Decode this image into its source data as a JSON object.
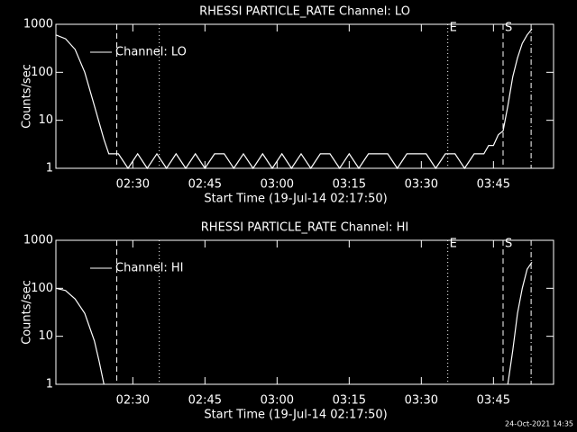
{
  "chart_data": [
    {
      "type": "line",
      "title": "RHESSI PARTICLE_RATE Channel: LO",
      "x_label": "Start Time (19-Jul-14 02:17:50)",
      "y_label": "Counts/sec",
      "log_scale": true,
      "xlim": [
        "02:14:00",
        "03:57:30"
      ],
      "ylim": [
        1,
        1000
      ],
      "xticks": [
        "02:30",
        "02:45",
        "03:00",
        "03:15",
        "03:30",
        "03:45"
      ],
      "yticks": [
        1,
        10,
        100,
        1000
      ],
      "legend": "upper left",
      "markers": [
        {
          "x": "02:26:40",
          "style": "dashed"
        },
        {
          "x": "02:35:30",
          "style": "dotted"
        },
        {
          "x": "03:35:30",
          "style": "dotted",
          "label": "E"
        },
        {
          "x": "03:47:00",
          "style": "dashed",
          "label": "S"
        },
        {
          "x": "03:52:50",
          "style": "dashdot"
        }
      ],
      "series": [
        {
          "name": "Channel: LO",
          "color": "#ffffff",
          "x": [
            "02:14:00",
            "02:16:00",
            "02:18:00",
            "02:20:00",
            "02:22:00",
            "02:24:00",
            "02:25:00",
            "02:27:00",
            "02:29:00",
            "02:31:00",
            "02:33:00",
            "02:35:00",
            "02:37:00",
            "02:39:00",
            "02:41:00",
            "02:43:00",
            "02:45:00",
            "02:47:00",
            "02:49:00",
            "02:51:00",
            "02:53:00",
            "02:55:00",
            "02:57:00",
            "02:59:00",
            "03:01:00",
            "03:03:00",
            "03:05:00",
            "03:07:00",
            "03:09:00",
            "03:11:00",
            "03:13:00",
            "03:15:00",
            "03:17:00",
            "03:19:00",
            "03:21:00",
            "03:23:00",
            "03:25:00",
            "03:27:00",
            "03:29:00",
            "03:31:00",
            "03:33:00",
            "03:35:00",
            "03:37:00",
            "03:39:00",
            "03:41:00",
            "03:43:00",
            "03:44:00",
            "03:45:00",
            "03:46:00",
            "03:47:00",
            "03:48:00",
            "03:49:00",
            "03:50:00",
            "03:51:00",
            "03:52:00",
            "03:53:00"
          ],
          "values": [
            600,
            500,
            300,
            100,
            20,
            4,
            2,
            2,
            1,
            2,
            1,
            2,
            1,
            2,
            1,
            2,
            1,
            2,
            2,
            1,
            2,
            1,
            2,
            1,
            2,
            1,
            2,
            1,
            2,
            2,
            1,
            2,
            1,
            2,
            2,
            2,
            1,
            2,
            2,
            2,
            1,
            2,
            2,
            1,
            2,
            2,
            3,
            3,
            5,
            6,
            20,
            80,
            200,
            400,
            600,
            800
          ]
        }
      ]
    },
    {
      "type": "line",
      "title": "RHESSI PARTICLE_RATE Channel: HI",
      "x_label": "Start Time (19-Jul-14 02:17:50)",
      "y_label": "Counts/sec",
      "log_scale": true,
      "xlim": [
        "02:14:00",
        "03:57:30"
      ],
      "ylim": [
        1,
        1000
      ],
      "xticks": [
        "02:30",
        "02:45",
        "03:00",
        "03:15",
        "03:30",
        "03:45"
      ],
      "yticks": [
        1,
        10,
        100,
        1000
      ],
      "legend": "upper left",
      "markers": [
        {
          "x": "02:26:40",
          "style": "dashed"
        },
        {
          "x": "02:35:30",
          "style": "dotted"
        },
        {
          "x": "03:35:30",
          "style": "dotted",
          "label": "E"
        },
        {
          "x": "03:47:00",
          "style": "dashed",
          "label": "S"
        },
        {
          "x": "03:52:50",
          "style": "dashdot"
        }
      ],
      "series": [
        {
          "name": "Channel: HI",
          "color": "#ffffff",
          "x": [
            "02:14:00",
            "02:16:00",
            "02:18:00",
            "02:20:00",
            "02:22:00",
            "02:23:00",
            "02:24:00",
            "03:00:00",
            "03:48:00",
            "03:49:00",
            "03:50:00",
            "03:51:00",
            "03:52:00",
            "03:53:00"
          ],
          "values": [
            100,
            90,
            60,
            30,
            8,
            3,
            1,
            null,
            1,
            5,
            30,
            100,
            250,
            350
          ]
        }
      ]
    }
  ],
  "footer": "24-Oct-2021 14:35"
}
